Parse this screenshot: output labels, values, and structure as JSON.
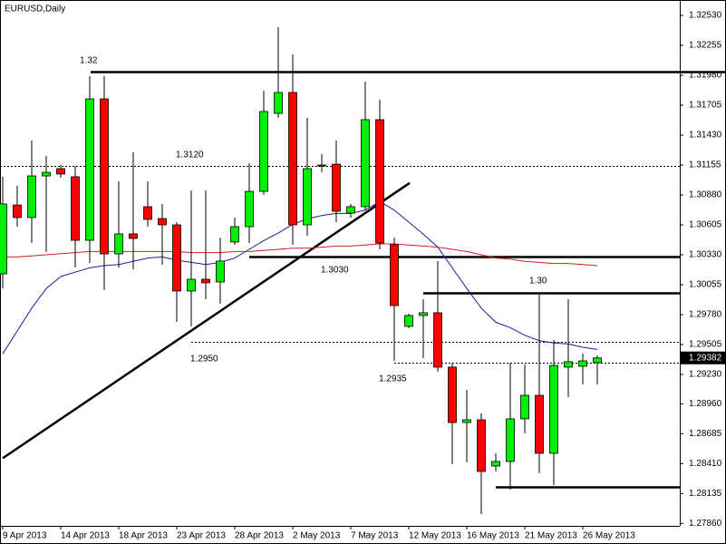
{
  "chart_data": {
    "type": "candlestick",
    "title": "EURUSD,Daily",
    "categories": [
      "9 Apr 2013",
      null,
      null,
      null,
      "14 Apr 2013",
      null,
      null,
      null,
      "18 Apr 2013",
      null,
      null,
      null,
      "23 Apr 2013",
      null,
      null,
      null,
      "28 Apr 2013",
      null,
      null,
      null,
      "2 May 2013",
      null,
      null,
      null,
      "7 May 2013",
      null,
      null,
      null,
      "12 May 2013",
      null,
      null,
      null,
      "16 May 2013",
      null,
      null,
      null,
      "21 May 2013",
      null,
      null,
      null,
      "26 May 2013",
      null
    ],
    "open": [
      1.30155,
      1.30788,
      1.30672,
      1.31055,
      1.31122,
      1.31047,
      1.30463,
      1.31763,
      1.30338,
      1.30522,
      1.30772,
      1.30663,
      1.30605,
      1.29997,
      1.30105,
      1.3008,
      1.30447,
      1.30588,
      1.30913,
      1.3163,
      1.31822,
      1.30605,
      1.31147,
      1.31163,
      1.30713,
      1.30772,
      1.31572,
      1.30422,
      1.29672,
      1.29772,
      1.29797,
      1.29297,
      1.28788,
      1.28813,
      1.28388,
      1.2843,
      1.28822,
      1.29038,
      1.28505,
      1.29297,
      1.29305,
      1.29338
    ],
    "high": [
      1.31047,
      1.30963,
      1.3138,
      1.31238,
      1.31155,
      1.31147,
      1.31972,
      1.31972,
      1.31005,
      1.31272,
      1.31005,
      1.30797,
      1.3063,
      1.30922,
      1.30922,
      1.30488,
      1.30672,
      1.31172,
      1.31838,
      1.32422,
      1.32172,
      1.31588,
      1.31255,
      1.3138,
      1.30797,
      1.31922,
      1.31755,
      1.30488,
      1.29788,
      1.29922,
      1.30272,
      1.29338,
      1.29088,
      1.28872,
      1.28505,
      1.29338,
      1.29322,
      1.29963,
      1.29547,
      1.29922,
      1.29422,
      1.29405
    ],
    "low": [
      1.30022,
      1.30588,
      1.30438,
      1.30355,
      1.31038,
      1.30213,
      1.30255,
      1.30005,
      1.30213,
      1.30197,
      1.30588,
      1.30238,
      1.29713,
      1.29672,
      1.29922,
      1.2988,
      1.30422,
      1.30438,
      1.3088,
      1.31588,
      1.30422,
      1.30505,
      1.31088,
      1.3063,
      1.30672,
      1.30738,
      1.3038,
      1.29355,
      1.29655,
      1.2938,
      1.29255,
      1.28405,
      1.28422,
      1.27947,
      1.28338,
      1.28172,
      1.28688,
      1.28322,
      1.28213,
      1.29022,
      1.29138,
      1.29138
    ],
    "close": [
      1.30797,
      1.30672,
      1.31055,
      1.31088,
      1.31072,
      1.30463,
      1.31763,
      1.30338,
      1.30522,
      1.3048,
      1.30655,
      1.30605,
      1.29997,
      1.30105,
      1.30072,
      1.30272,
      1.30588,
      1.30913,
      1.31647,
      1.31822,
      1.30605,
      1.31122,
      1.31155,
      1.3073,
      1.30772,
      1.31572,
      1.30438,
      1.29863,
      1.29772,
      1.29797,
      1.29297,
      1.28788,
      1.28813,
      1.28338,
      1.2843,
      1.28822,
      1.29038,
      1.28505,
      1.29313,
      1.29347,
      1.29355,
      1.29382
    ],
    "up_color": "#00ee00",
    "down_color": "#ff0000",
    "moving_averages": [
      {
        "color": "#1c1c9c",
        "values": [
          1.2942,
          1.2963,
          1.2984,
          1.3002,
          1.3013,
          1.3017,
          1.3021,
          1.3023,
          1.3024,
          1.3027,
          1.303,
          1.3031,
          1.3028,
          1.3026,
          1.3024,
          1.3026,
          1.303,
          1.3038,
          1.3046,
          1.3053,
          1.3061,
          1.3066,
          1.3069,
          1.3071,
          1.3071,
          1.3074,
          1.3082,
          1.3074,
          1.3063,
          1.3052,
          1.304,
          1.3021,
          1.3002,
          1.2984,
          1.2971,
          1.2966,
          1.2959,
          1.2954,
          1.2952,
          1.2951,
          1.2948,
          1.2946
        ]
      },
      {
        "color": "#cc2020",
        "values": [
          1.3031,
          1.3031,
          1.3032,
          1.3033,
          1.3034,
          1.3035,
          1.3036,
          1.3036,
          1.3036,
          1.3036,
          1.3036,
          1.3036,
          1.3036,
          1.3035,
          1.3035,
          1.3035,
          1.3036,
          1.3036,
          1.3037,
          1.3038,
          1.3039,
          1.3039,
          1.304,
          1.3041,
          1.3041,
          1.3042,
          1.3043,
          1.3043,
          1.3042,
          1.3041,
          1.304,
          1.3038,
          1.3036,
          1.3033,
          1.303,
          1.3029,
          1.3027,
          1.3026,
          1.3025,
          1.3025,
          1.3024,
          1.3023
        ]
      }
    ],
    "levels": [
      {
        "value": 1.3201,
        "style": "solid"
      },
      {
        "value": 1.3115,
        "style": "dotted"
      },
      {
        "value": 1.3031,
        "style": "solid"
      },
      {
        "value": 1.2998,
        "style": "solid"
      },
      {
        "value": 1.2953,
        "style": "dotted"
      },
      {
        "value": 1.2934,
        "style": "dotted"
      },
      {
        "value": 1.282,
        "style": "solid"
      }
    ],
    "trendline": [
      1.2846,
      1.3099
    ],
    "annotations": [
      "1.32",
      "1.3120",
      "1.3030",
      "1.30",
      "1.2950",
      "1.2935"
    ],
    "last_price": 1.29382,
    "ylim": [
      1.27838,
      1.32672
    ],
    "yticks": [
      {
        "value": 1.3253,
        "label": "1.32530"
      },
      1.32255,
      {
        "value": 1.3198,
        "label": "1.31980"
      },
      1.31705,
      {
        "value": 1.3143,
        "label": "1.31430"
      },
      1.31155,
      {
        "value": 1.3088,
        "label": "1.30880"
      },
      1.30605,
      {
        "value": 1.3033,
        "label": "1.30330"
      },
      1.30055,
      {
        "value": 1.2978,
        "label": "1.29780"
      },
      1.29505,
      {
        "value": 1.2923,
        "label": "1.29230"
      },
      {
        "value": 1.2896,
        "label": "1.28960"
      },
      1.28685,
      {
        "value": 1.2841,
        "label": "1.28410"
      },
      1.28135,
      {
        "value": 1.2786,
        "label": "1.27860"
      }
    ]
  }
}
